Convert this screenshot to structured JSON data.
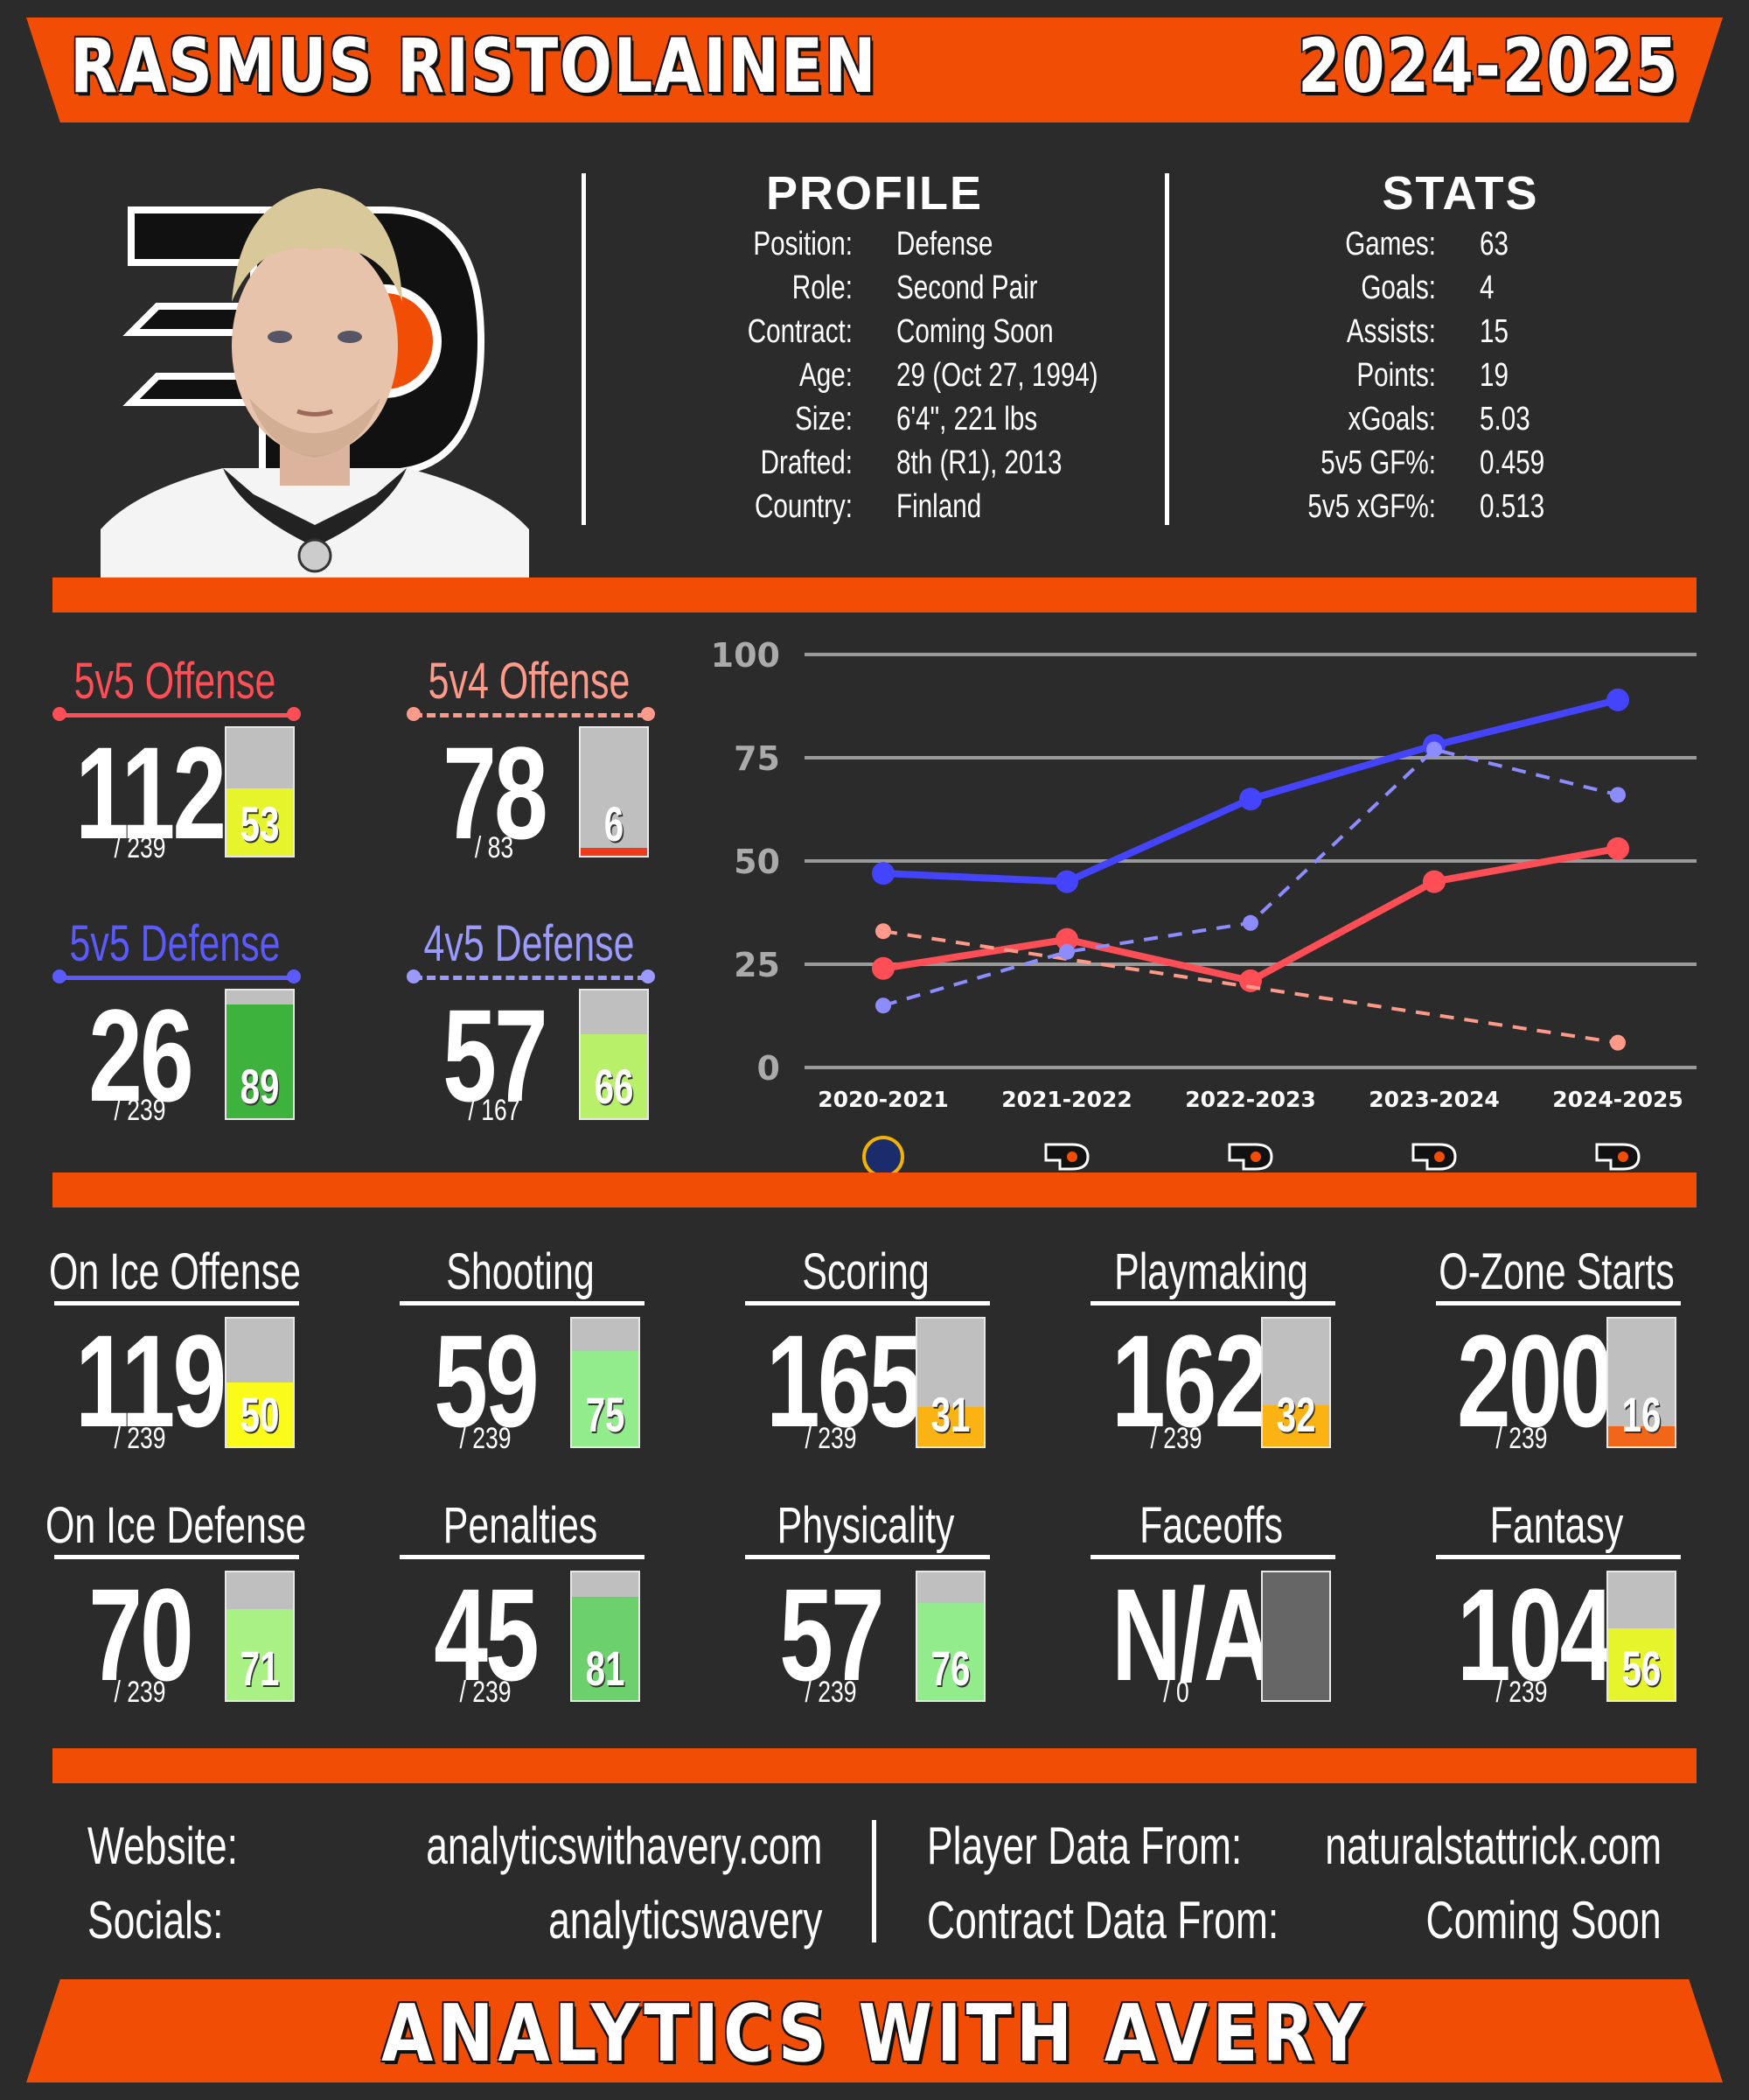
{
  "header": {
    "player_name": "RASMUS RISTOLAINEN",
    "season": "2024-2025"
  },
  "profile": {
    "title": "PROFILE",
    "rows": [
      {
        "label": "Position:",
        "value": "Defense"
      },
      {
        "label": "Role:",
        "value": "Second Pair"
      },
      {
        "label": "Contract:",
        "value": "Coming Soon"
      },
      {
        "label": "Age:",
        "value": "29 (Oct 27, 1994)"
      },
      {
        "label": "Size:",
        "value": "6'4\", 221 lbs"
      },
      {
        "label": "Drafted:",
        "value": "8th (R1), 2013"
      },
      {
        "label": "Country:",
        "value": "Finland"
      }
    ]
  },
  "stats": {
    "title": "STATS",
    "rows": [
      {
        "label": "Games:",
        "value": "63"
      },
      {
        "label": "Goals:",
        "value": "4"
      },
      {
        "label": "Assists:",
        "value": "15"
      },
      {
        "label": "Points:",
        "value": "19"
      },
      {
        "label": "xGoals:",
        "value": "5.03"
      },
      {
        "label": "5v5 GF%:",
        "value": "0.459"
      },
      {
        "label": "5v5 xGF%:",
        "value": "0.513"
      }
    ]
  },
  "special_metrics": [
    {
      "title": "5v5 Offense",
      "rank": "112",
      "total": "/ 239",
      "pct": 53,
      "color": "#ff4e55",
      "fill": "#e6f52b"
    },
    {
      "title": "5v4 Offense",
      "rank": "78",
      "total": "/ 83",
      "pct": 6,
      "color": "#ff9a8a",
      "fill": "#f03a1c"
    },
    {
      "title": "5v5 Defense",
      "rank": "26",
      "total": "/ 239",
      "pct": 89,
      "color": "#5a5aff",
      "fill": "#3db33d"
    },
    {
      "title": "4v5 Defense",
      "rank": "57",
      "total": "/ 167",
      "pct": 66,
      "color": "#9a9aff",
      "fill": "#b8f06a"
    }
  ],
  "chart_data": {
    "type": "line",
    "categories": [
      "2020-2021",
      "2021-2022",
      "2022-2023",
      "2023-2024",
      "2024-2025"
    ],
    "team_icons": [
      "sabres-logo-icon",
      "flyers-logo-icon",
      "flyers-logo-icon",
      "flyers-logo-icon",
      "flyers-logo-icon"
    ],
    "ylim": [
      0,
      100
    ],
    "yticks": [
      "0",
      "25",
      "50",
      "75",
      "100"
    ],
    "grid": true,
    "series": [
      {
        "values": [
          24,
          31,
          21,
          45,
          53
        ],
        "color": "#ff4e55",
        "dashed": false
      },
      {
        "values": [
          33,
          null,
          null,
          null,
          6
        ],
        "color": "#ff9a8a",
        "dashed": true
      },
      {
        "values": [
          47,
          45,
          65,
          78,
          89
        ],
        "color": "#4444ff",
        "dashed": false
      },
      {
        "values": [
          15,
          28,
          35,
          77,
          66
        ],
        "color": "#8c8cff",
        "dashed": true
      }
    ]
  },
  "metrics": [
    {
      "title": "On Ice Offense",
      "rank": "119",
      "total": "/ 239",
      "pct": 50,
      "fill": "#fbfb1a"
    },
    {
      "title": "Shooting",
      "rank": "59",
      "total": "/ 239",
      "pct": 75,
      "fill": "#93ec8b"
    },
    {
      "title": "Scoring",
      "rank": "165",
      "total": "/ 239",
      "pct": 31,
      "fill": "#fbb313"
    },
    {
      "title": "Playmaking",
      "rank": "162",
      "total": "/ 239",
      "pct": 32,
      "fill": "#fbb313"
    },
    {
      "title": "O-Zone Starts",
      "rank": "200",
      "total": "/ 239",
      "pct": 16,
      "fill": "#f2661a"
    },
    {
      "title": "On Ice Defense",
      "rank": "70",
      "total": "/ 239",
      "pct": 71,
      "fill": "#a9f085"
    },
    {
      "title": "Penalties",
      "rank": "45",
      "total": "/ 239",
      "pct": 81,
      "fill": "#6cd06c"
    },
    {
      "title": "Physicality",
      "rank": "57",
      "total": "/ 239",
      "pct": 76,
      "fill": "#93ec8b"
    },
    {
      "title": "Faceoffs",
      "rank": "N/A",
      "total": "/ 0",
      "pct": null,
      "fill": "#666666"
    },
    {
      "title": "Fantasy",
      "rank": "104",
      "total": "/ 239",
      "pct": 56,
      "fill": "#e6f52b"
    }
  ],
  "footer": {
    "website_label": "Website:",
    "website": "analyticswithavery.com",
    "socials_label": "Socials:",
    "socials": "analyticswavery",
    "player_data_label": "Player Data From:",
    "player_data": "naturalstattrick.com",
    "contract_data_label": "Contract Data From:",
    "contract_data": "Coming Soon",
    "brand": "ANALYTICS WITH AVERY"
  }
}
